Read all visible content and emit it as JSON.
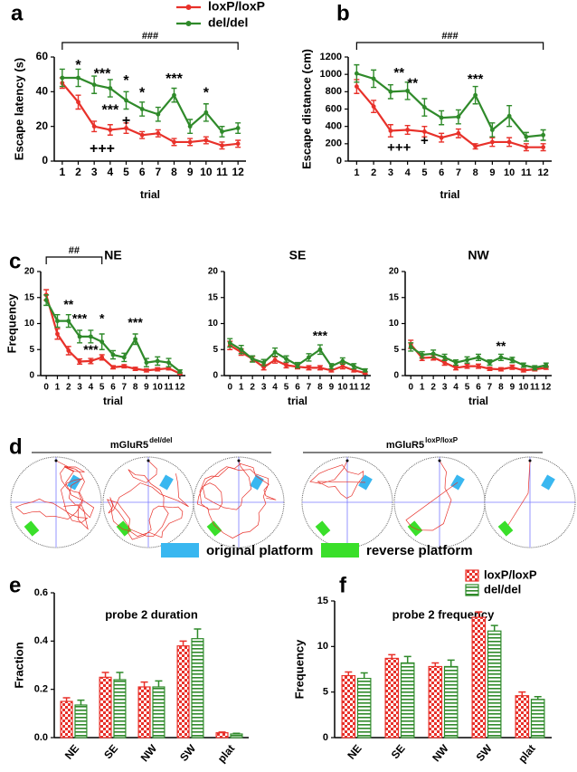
{
  "chart_data": [
    {
      "type": "line",
      "label": "a",
      "ylabel": "Escape latency (s)",
      "xlabel": "trial",
      "legend": "above",
      "x": [
        1,
        2,
        3,
        4,
        5,
        6,
        7,
        8,
        9,
        10,
        11,
        12
      ],
      "xlim": [
        0.5,
        12.5
      ],
      "xticks": [
        1,
        2,
        3,
        4,
        5,
        6,
        7,
        8,
        9,
        10,
        11,
        12
      ],
      "ylim": [
        0,
        60
      ],
      "yticks": [
        0,
        20,
        40,
        60
      ],
      "series": [
        {
          "name": "loxP/loxP",
          "color": "#e8312a",
          "values": [
            45,
            34,
            20,
            18,
            19,
            15,
            16,
            11,
            11,
            12,
            9,
            10
          ],
          "errors": [
            3,
            4,
            3,
            3,
            3,
            2,
            2,
            2,
            2,
            2,
            2,
            2
          ]
        },
        {
          "name": "del/del",
          "color": "#2f8a2a",
          "values": [
            48,
            48,
            44,
            42,
            35,
            30,
            27,
            38,
            20,
            28,
            17,
            19
          ],
          "errors": [
            5,
            5,
            5,
            5,
            5,
            4,
            4,
            4,
            4,
            5,
            3,
            3
          ]
        }
      ],
      "bracket": {
        "text": "###",
        "x": [
          1,
          12
        ]
      },
      "annotations": [
        {
          "text": "*",
          "x": 2,
          "y": 55
        },
        {
          "text": "***",
          "x": 3.5,
          "y": 50
        },
        {
          "text": "*",
          "x": 5,
          "y": 46
        },
        {
          "text": "*",
          "x": 6,
          "y": 39
        },
        {
          "text": "***",
          "x": 8,
          "y": 47
        },
        {
          "text": "*",
          "x": 10,
          "y": 39
        },
        {
          "text": "***",
          "x": 4,
          "y": 29
        },
        {
          "text": "+",
          "x": 5,
          "y": 23
        },
        {
          "text": "+++",
          "x": 3.5,
          "y": 7
        }
      ]
    },
    {
      "type": "line",
      "label": "b",
      "ylabel": "Escape distance (cm)",
      "xlabel": "trial",
      "x": [
        1,
        2,
        3,
        4,
        5,
        6,
        7,
        8,
        9,
        10,
        11,
        12
      ],
      "xlim": [
        0.5,
        12.5
      ],
      "xticks": [
        1,
        2,
        3,
        4,
        5,
        6,
        7,
        8,
        9,
        10,
        11,
        12
      ],
      "ylim": [
        0,
        1200
      ],
      "yticks": [
        0,
        200,
        400,
        600,
        800,
        1000,
        1200
      ],
      "series": [
        {
          "color": "#e8312a",
          "values": [
            860,
            630,
            350,
            360,
            340,
            270,
            320,
            170,
            220,
            220,
            160,
            160
          ],
          "errors": [
            80,
            70,
            70,
            50,
            60,
            50,
            50,
            30,
            50,
            50,
            40,
            40
          ]
        },
        {
          "color": "#2f8a2a",
          "values": [
            1010,
            950,
            800,
            810,
            620,
            500,
            510,
            760,
            360,
            520,
            280,
            300
          ],
          "errors": [
            100,
            100,
            80,
            100,
            100,
            80,
            80,
            100,
            80,
            120,
            50,
            60
          ]
        }
      ],
      "bracket": {
        "text": "###",
        "x": [
          1,
          12
        ]
      },
      "annotations": [
        {
          "text": "**",
          "x": 3.5,
          "y": 1010
        },
        {
          "text": "**",
          "x": 4.3,
          "y": 890
        },
        {
          "text": "***",
          "x": 8,
          "y": 940
        },
        {
          "text": "+",
          "x": 5,
          "y": 230
        },
        {
          "text": "+++",
          "x": 3.5,
          "y": 150
        }
      ]
    },
    {
      "type": "line",
      "label": "c",
      "title": "NE",
      "ylabel": "Frequency",
      "xlabel": "trial",
      "x": [
        0,
        1,
        2,
        3,
        4,
        5,
        6,
        7,
        8,
        9,
        10,
        11,
        12
      ],
      "xlim": [
        -0.5,
        12.5
      ],
      "xticks": [
        0,
        1,
        2,
        3,
        4,
        5,
        6,
        7,
        8,
        9,
        10,
        11,
        12
      ],
      "ylim": [
        0,
        20
      ],
      "yticks": [
        0,
        5,
        10,
        15,
        20
      ],
      "series": [
        {
          "color": "#e8312a",
          "values": [
            15.5,
            8,
            4.8,
            2.7,
            2.8,
            3.5,
            1.6,
            1.8,
            1.3,
            1.0,
            1.2,
            1.4,
            0.4
          ],
          "errors": [
            1,
            1,
            0.8,
            0.5,
            0.5,
            0.5,
            0.3,
            0.3,
            0.3,
            0.3,
            0.3,
            0.3,
            0.2
          ]
        },
        {
          "color": "#2f8a2a",
          "values": [
            14.5,
            10.5,
            10.5,
            7.5,
            7.5,
            6.5,
            4,
            3.5,
            7,
            2.5,
            2.8,
            2.5,
            0.8
          ],
          "errors": [
            1,
            1.2,
            1.2,
            1.2,
            1.2,
            1.5,
            0.8,
            0.8,
            1,
            0.8,
            0.8,
            0.8,
            0.3
          ]
        }
      ],
      "bracket": {
        "text": "##",
        "x": [
          0,
          5
        ]
      },
      "annotations": [
        {
          "text": "**",
          "x": 2,
          "y": 13.5
        },
        {
          "text": "***",
          "x": 3,
          "y": 10.8
        },
        {
          "text": "*",
          "x": 5,
          "y": 10.8
        },
        {
          "text": "***",
          "x": 8,
          "y": 10
        },
        {
          "text": "***",
          "x": 4,
          "y": 4.8
        }
      ]
    },
    {
      "type": "line",
      "title": "SE",
      "xlabel": "trial",
      "x": [
        0,
        1,
        2,
        3,
        4,
        5,
        6,
        7,
        8,
        9,
        10,
        11,
        12
      ],
      "xlim": [
        -0.5,
        12.5
      ],
      "xticks": [
        0,
        1,
        2,
        3,
        4,
        5,
        6,
        7,
        8,
        9,
        10,
        11,
        12
      ],
      "ylim": [
        0,
        20
      ],
      "yticks": [
        0,
        5,
        10,
        15,
        20
      ],
      "series": [
        {
          "color": "#e8312a",
          "values": [
            5.8,
            4.5,
            3.2,
            1.6,
            3,
            2,
            1.7,
            1.5,
            1.5,
            1,
            1.8,
            1,
            0.5
          ],
          "errors": [
            0.8,
            0.6,
            0.5,
            0.5,
            0.6,
            0.5,
            0.4,
            0.4,
            0.4,
            0.3,
            0.5,
            0.3,
            0.2
          ]
        },
        {
          "color": "#2f8a2a",
          "values": [
            6.3,
            5,
            3.2,
            2.5,
            4.5,
            3.2,
            2,
            3.5,
            5,
            1.8,
            2.8,
            1.8,
            1
          ],
          "errors": [
            0.8,
            0.8,
            0.6,
            0.6,
            0.8,
            0.6,
            0.5,
            0.7,
            0.9,
            0.5,
            0.6,
            0.5,
            0.3
          ]
        }
      ],
      "annotations": [
        {
          "text": "***",
          "x": 8,
          "y": 7.5
        }
      ]
    },
    {
      "type": "line",
      "title": "NW",
      "xlabel": "trial",
      "x": [
        0,
        1,
        2,
        3,
        4,
        5,
        6,
        7,
        8,
        9,
        10,
        11,
        12
      ],
      "xlim": [
        -0.5,
        12.5
      ],
      "xticks": [
        0,
        1,
        2,
        3,
        4,
        5,
        6,
        7,
        8,
        9,
        10,
        11,
        12
      ],
      "ylim": [
        0,
        20
      ],
      "yticks": [
        0,
        5,
        10,
        15,
        20
      ],
      "series": [
        {
          "color": "#e8312a",
          "values": [
            6,
            3.4,
            3.5,
            2.5,
            1.5,
            1.8,
            1.8,
            1.3,
            1.2,
            1.6,
            1,
            1.2,
            1.5
          ],
          "errors": [
            0.8,
            0.5,
            0.5,
            0.5,
            0.4,
            0.4,
            0.4,
            0.3,
            0.3,
            0.4,
            0.3,
            0.3,
            0.3
          ]
        },
        {
          "color": "#2f8a2a",
          "values": [
            5.5,
            4,
            4.2,
            3.5,
            2.5,
            3,
            3.5,
            2.5,
            3.5,
            3,
            2,
            1.5,
            2
          ],
          "errors": [
            0.8,
            0.6,
            0.7,
            0.6,
            0.5,
            0.6,
            0.6,
            0.5,
            0.6,
            0.5,
            0.4,
            0.4,
            0.4
          ]
        }
      ],
      "annotations": [
        {
          "text": "**",
          "x": 8,
          "y": 5.5
        }
      ]
    },
    {
      "type": "bar",
      "label": "e",
      "title": "probe 2 duration",
      "ylabel": "Fraction",
      "categories": [
        "NE",
        "SE",
        "NW",
        "SW",
        "plat"
      ],
      "ylim": [
        0,
        0.6
      ],
      "yticks": [
        {
          "value": 0,
          "label": "0.0"
        },
        0.2,
        0.4,
        0.6
      ],
      "series": [
        {
          "color": "#e8312a",
          "hatch": "checker",
          "values": [
            0.15,
            0.25,
            0.21,
            0.38,
            0.02
          ],
          "errors": [
            0.015,
            0.02,
            0.02,
            0.02,
            0.003
          ]
        },
        {
          "color": "#2f8a2a",
          "hatch": "horizontal",
          "values": [
            0.135,
            0.24,
            0.21,
            0.41,
            0.015
          ],
          "errors": [
            0.02,
            0.03,
            0.025,
            0.04,
            0.003
          ]
        }
      ]
    },
    {
      "type": "bar",
      "label": "f",
      "title": "probe 2 frequency",
      "ylabel": "Frequency",
      "legend": "upper right",
      "categories": [
        "NE",
        "SE",
        "NW",
        "SW",
        "plat"
      ],
      "ylim": [
        0,
        15
      ],
      "yticks": [
        0,
        5,
        10,
        15
      ],
      "series": [
        {
          "name": "loxP/loxP",
          "color": "#e8312a",
          "hatch": "checker",
          "values": [
            6.8,
            8.7,
            7.8,
            13.2,
            4.6
          ],
          "errors": [
            0.4,
            0.4,
            0.4,
            0.6,
            0.4
          ]
        },
        {
          "name": "del/del",
          "color": "#2f8a2a",
          "hatch": "horizontal",
          "values": [
            6.5,
            8.2,
            7.8,
            11.7,
            4.2
          ],
          "errors": [
            0.6,
            0.7,
            0.7,
            0.6,
            0.3
          ]
        }
      ]
    }
  ],
  "panel_d": {
    "label": "d",
    "groups": [
      {
        "title": "mGluR5",
        "superscript": "del/del"
      },
      {
        "title": "mGluR5",
        "superscript": "loxP/loxP"
      }
    ],
    "legend": [
      "original platform",
      "reverse platform"
    ]
  }
}
